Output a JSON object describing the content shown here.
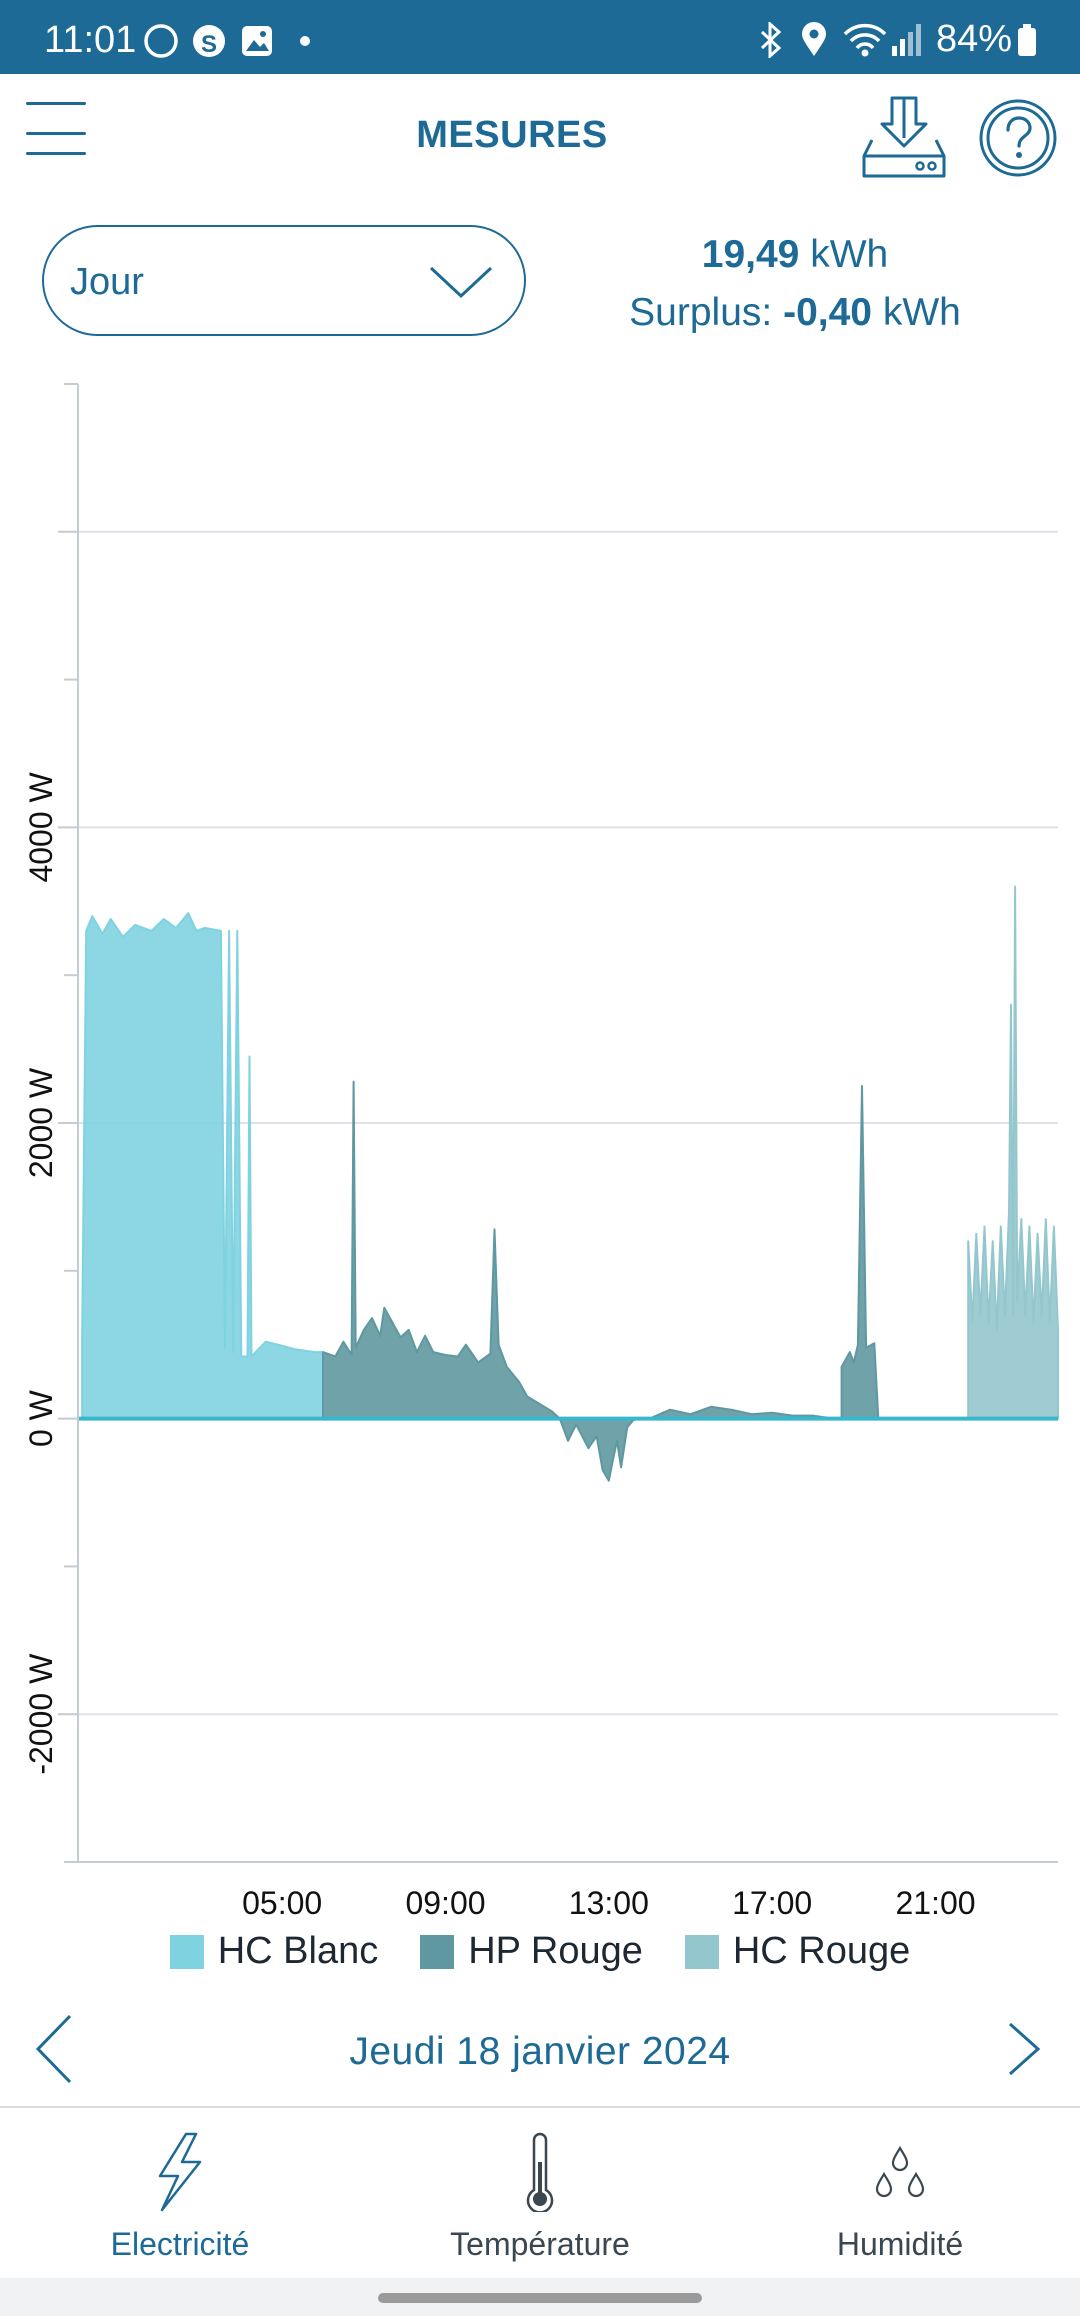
{
  "status_bar": {
    "time": "11:01",
    "battery": "84%"
  },
  "header": {
    "title": "MESURES",
    "menu_icon": "menu-icon",
    "download_icon": "download-icon",
    "help_icon": "help-icon"
  },
  "period": {
    "selected": "Jour"
  },
  "totals": {
    "energy_value": "19,49",
    "energy_unit": "kWh",
    "surplus_label": "Surplus:",
    "surplus_value": "-0,40",
    "surplus_unit": "kWh"
  },
  "chart_data": {
    "type": "area",
    "ylabel": "",
    "ylim": [
      -3000,
      7000
    ],
    "yticks": [
      {
        "value": 4000,
        "label": "4000 W"
      },
      {
        "value": 2000,
        "label": "2000 W"
      },
      {
        "value": 0,
        "label": "0 W"
      },
      {
        "value": -2000,
        "label": "-2000 W"
      }
    ],
    "xlim": [
      0,
      24
    ],
    "xticks": [
      {
        "value": 5,
        "label": "05:00"
      },
      {
        "value": 9,
        "label": "09:00"
      },
      {
        "value": 13,
        "label": "13:00"
      },
      {
        "value": 17,
        "label": "17:00"
      },
      {
        "value": 21,
        "label": "21:00"
      }
    ],
    "grid": true,
    "legend_position": "bottom",
    "series": [
      {
        "name": "HC Blanc",
        "color": "#7fd3e0",
        "segments": [
          [
            [
              0.1,
              0
            ],
            [
              0.1,
              520
            ],
            [
              0.2,
              3300
            ],
            [
              0.35,
              3400
            ],
            [
              0.6,
              3280
            ],
            [
              0.8,
              3380
            ],
            [
              1.1,
              3260
            ],
            [
              1.4,
              3340
            ],
            [
              1.8,
              3300
            ],
            [
              2.1,
              3380
            ],
            [
              2.4,
              3320
            ],
            [
              2.7,
              3420
            ],
            [
              2.9,
              3300
            ],
            [
              3.1,
              3320
            ],
            [
              3.5,
              3300
            ],
            [
              3.6,
              480
            ],
            [
              3.7,
              3300
            ],
            [
              3.8,
              450
            ],
            [
              3.9,
              3300
            ],
            [
              4.0,
              420
            ],
            [
              4.15,
              420
            ],
            [
              4.2,
              2450
            ],
            [
              4.25,
              420
            ],
            [
              4.35,
              450
            ],
            [
              4.6,
              520
            ],
            [
              4.9,
              500
            ],
            [
              5.3,
              470
            ],
            [
              5.8,
              450
            ],
            [
              6.0,
              450
            ],
            [
              6.0,
              0
            ]
          ]
        ]
      },
      {
        "name": "HP Rouge",
        "color": "#5f98a0",
        "segments": [
          [
            [
              6.0,
              0
            ],
            [
              6.0,
              450
            ],
            [
              6.3,
              420
            ],
            [
              6.5,
              520
            ],
            [
              6.7,
              430
            ],
            [
              6.75,
              2280
            ],
            [
              6.8,
              480
            ],
            [
              7.0,
              600
            ],
            [
              7.2,
              680
            ],
            [
              7.4,
              560
            ],
            [
              7.5,
              750
            ],
            [
              7.7,
              650
            ],
            [
              7.9,
              550
            ],
            [
              8.1,
              600
            ],
            [
              8.3,
              450
            ],
            [
              8.5,
              560
            ],
            [
              8.7,
              450
            ],
            [
              9.0,
              430
            ],
            [
              9.3,
              420
            ],
            [
              9.5,
              500
            ],
            [
              9.8,
              380
            ],
            [
              10.1,
              440
            ],
            [
              10.2,
              1280
            ],
            [
              10.3,
              500
            ],
            [
              10.5,
              350
            ],
            [
              10.8,
              250
            ],
            [
              11.0,
              150
            ],
            [
              11.3,
              100
            ],
            [
              11.6,
              50
            ],
            [
              11.8,
              0
            ]
          ],
          [
            [
              11.8,
              0
            ],
            [
              12.0,
              -150
            ],
            [
              12.2,
              -40
            ],
            [
              12.5,
              -200
            ],
            [
              12.7,
              -120
            ],
            [
              12.85,
              -350
            ],
            [
              13.0,
              -420
            ],
            [
              13.1,
              -280
            ],
            [
              13.2,
              -150
            ],
            [
              13.3,
              -330
            ],
            [
              13.45,
              -60
            ],
            [
              13.6,
              -10
            ],
            [
              13.8,
              0
            ]
          ],
          [
            [
              14.0,
              0
            ],
            [
              14.5,
              60
            ],
            [
              15.0,
              30
            ],
            [
              15.5,
              80
            ],
            [
              16.0,
              60
            ],
            [
              16.5,
              30
            ],
            [
              17.0,
              40
            ],
            [
              17.5,
              20
            ],
            [
              18.0,
              20
            ],
            [
              18.5,
              0
            ]
          ],
          [
            [
              18.7,
              0
            ],
            [
              18.7,
              350
            ],
            [
              18.9,
              450
            ],
            [
              19.0,
              380
            ],
            [
              19.1,
              500
            ],
            [
              19.2,
              2250
            ],
            [
              19.3,
              480
            ],
            [
              19.5,
              510
            ],
            [
              19.6,
              0
            ]
          ]
        ]
      },
      {
        "name": "HC Rouge",
        "color": "#94c7cd",
        "segments": [
          [
            [
              21.8,
              0
            ],
            [
              21.8,
              1200
            ],
            [
              21.9,
              650
            ],
            [
              22.0,
              1250
            ],
            [
              22.1,
              700
            ],
            [
              22.2,
              1300
            ],
            [
              22.3,
              650
            ],
            [
              22.4,
              1200
            ],
            [
              22.5,
              600
            ],
            [
              22.6,
              1300
            ],
            [
              22.7,
              700
            ],
            [
              22.8,
              1400
            ],
            [
              22.85,
              2800
            ],
            [
              22.9,
              700
            ],
            [
              22.95,
              3600
            ],
            [
              23.0,
              800
            ],
            [
              23.1,
              1350
            ],
            [
              23.2,
              700
            ],
            [
              23.3,
              1300
            ],
            [
              23.4,
              650
            ],
            [
              23.5,
              1250
            ],
            [
              23.6,
              700
            ],
            [
              23.7,
              1350
            ],
            [
              23.8,
              650
            ],
            [
              23.9,
              1300
            ],
            [
              24.0,
              600
            ],
            [
              24.0,
              0
            ]
          ]
        ]
      }
    ]
  },
  "legend": [
    {
      "label": "HC Blanc",
      "color": "#7fd3e0"
    },
    {
      "label": "HP Rouge",
      "color": "#5f98a0"
    },
    {
      "label": "HC Rouge",
      "color": "#94c7cd"
    }
  ],
  "date_nav": {
    "label": "Jeudi 18 janvier 2024",
    "prev_icon": "chevron-left-icon",
    "next_icon": "chevron-right-icon"
  },
  "bottom_nav": [
    {
      "label": "Electricité",
      "icon": "lightning-icon",
      "active": true
    },
    {
      "label": "Température",
      "icon": "thermometer-icon",
      "active": false
    },
    {
      "label": "Humidité",
      "icon": "droplets-icon",
      "active": false
    }
  ],
  "colors": {
    "primary": "#1d6a96",
    "grid": "#dde3e8",
    "zero_line": "#37b8cf"
  }
}
